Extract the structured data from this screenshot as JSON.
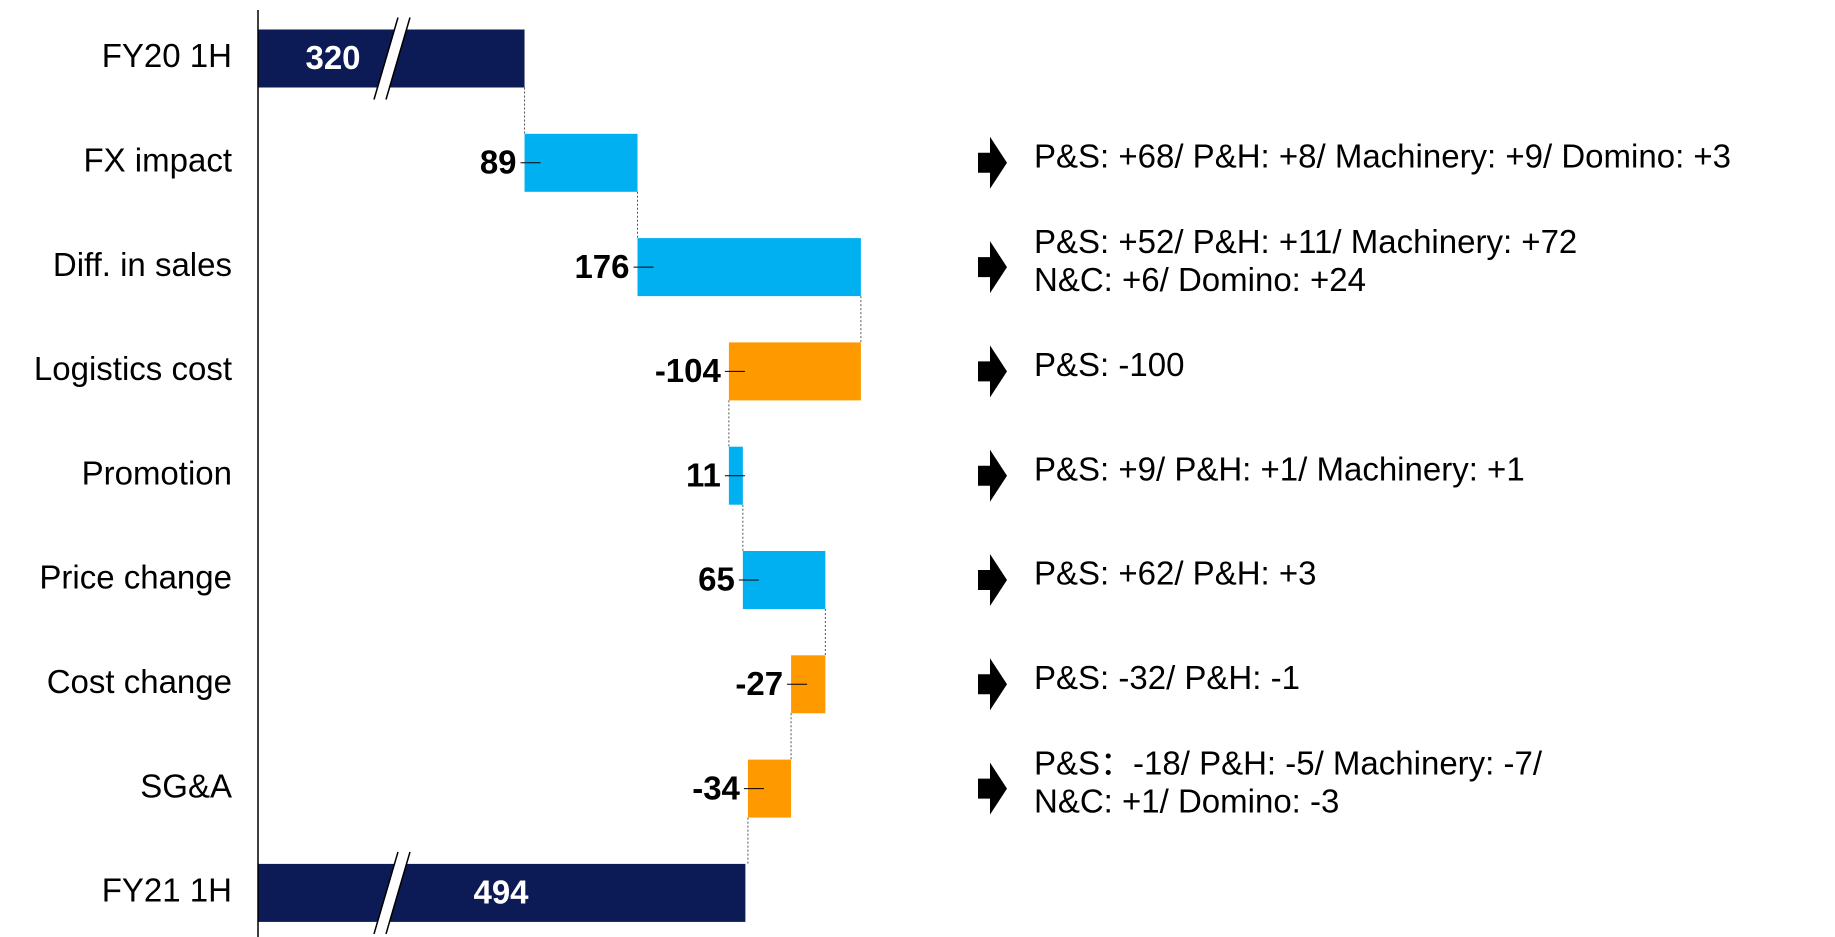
{
  "chart_data": {
    "type": "waterfall",
    "categories": [
      "FY20 1H",
      "FX impact",
      "Diff. in sales",
      "Logistics cost",
      "Promotion",
      "Price change",
      "Cost change",
      "SG&A",
      "FY21 1H"
    ],
    "values": [
      320,
      89,
      176,
      -104,
      11,
      65,
      -27,
      -34,
      494
    ],
    "totals": [
      true,
      false,
      false,
      false,
      false,
      false,
      false,
      false,
      true
    ],
    "colors": {
      "total": "#0c1a55",
      "increase": "#00b0f0",
      "decrease": "#ff9900"
    },
    "xlim": [
      110,
      500
    ],
    "axis_break": true,
    "notes": [
      null,
      [
        "P&S: +68/ P&H: +8/ Machinery: +9/ Domino: +3"
      ],
      [
        "P&S: +52/ P&H: +11/ Machinery: +72",
        "N&C: +6/ Domino: +24"
      ],
      [
        "P&S: -100"
      ],
      [
        "P&S: +9/ P&H: +1/ Machinery: +1"
      ],
      [
        "P&S: +62/ P&H: +3"
      ],
      [
        "P&S: -32/ P&H: -1"
      ],
      [
        "P&S：-18/ P&H: -5/ Machinery: -7/",
        "N&C: +1/ Domino: -3"
      ],
      null
    ]
  }
}
